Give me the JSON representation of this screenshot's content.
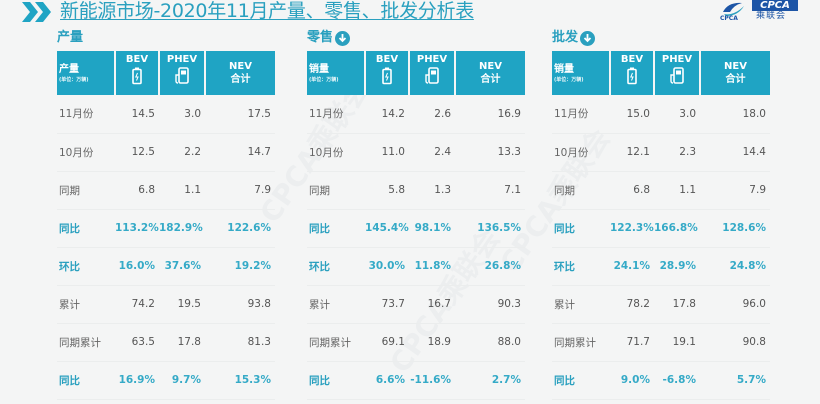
{
  "title": "新能源市场-2020年11月产量、零售、批发分析表",
  "logo": {
    "text": "CPCA",
    "cn": "乘联会",
    "sub": "CPCA"
  },
  "watermark": "CPCA乘联会",
  "colors": {
    "accent": "#2aa0bf",
    "header_bg": "#1fa4c4",
    "background": "#f4f5f5",
    "logo_blue": "#1d55a6"
  },
  "columns": {
    "bev": "BEV",
    "phev": "PHEV",
    "nev": "NEV",
    "nev_sub": "合计",
    "unit": "(单位：万辆)"
  },
  "sections": [
    {
      "title": "产量",
      "has_icon": false,
      "label_head": "产量",
      "rows": [
        {
          "label": "11月份",
          "bev": "14.5",
          "phev": "3.0",
          "nev": "17.5",
          "pct": false
        },
        {
          "label": "10月份",
          "bev": "12.5",
          "phev": "2.2",
          "nev": "14.7",
          "pct": false
        },
        {
          "label": "同期",
          "bev": "6.8",
          "phev": "1.1",
          "nev": "7.9",
          "pct": false
        },
        {
          "label": "同比",
          "bev": "113.2%",
          "phev": "182.9%",
          "nev": "122.6%",
          "pct": true
        },
        {
          "label": "环比",
          "bev": "16.0%",
          "phev": "37.6%",
          "nev": "19.2%",
          "pct": true
        },
        {
          "label": "累计",
          "bev": "74.2",
          "phev": "19.5",
          "nev": "93.8",
          "pct": false
        },
        {
          "label": "同期累计",
          "bev": "63.5",
          "phev": "17.8",
          "nev": "81.3",
          "pct": false
        },
        {
          "label": "同比",
          "bev": "16.9%",
          "phev": "9.7%",
          "nev": "15.3%",
          "pct": true
        }
      ]
    },
    {
      "title": "零售",
      "has_icon": true,
      "label_head": "销量",
      "rows": [
        {
          "label": "11月份",
          "bev": "14.2",
          "phev": "2.6",
          "nev": "16.9",
          "pct": false
        },
        {
          "label": "10月份",
          "bev": "11.0",
          "phev": "2.4",
          "nev": "13.3",
          "pct": false
        },
        {
          "label": "同期",
          "bev": "5.8",
          "phev": "1.3",
          "nev": "7.1",
          "pct": false
        },
        {
          "label": "同比",
          "bev": "145.4%",
          "phev": "98.1%",
          "nev": "136.5%",
          "pct": true
        },
        {
          "label": "环比",
          "bev": "30.0%",
          "phev": "11.8%",
          "nev": "26.8%",
          "pct": true
        },
        {
          "label": "累计",
          "bev": "73.7",
          "phev": "16.7",
          "nev": "90.3",
          "pct": false
        },
        {
          "label": "同期累计",
          "bev": "69.1",
          "phev": "18.9",
          "nev": "88.0",
          "pct": false
        },
        {
          "label": "同比",
          "bev": "6.6%",
          "phev": "-11.6%",
          "nev": "2.7%",
          "pct": true
        }
      ]
    },
    {
      "title": "批发",
      "has_icon": true,
      "label_head": "销量",
      "rows": [
        {
          "label": "11月份",
          "bev": "15.0",
          "phev": "3.0",
          "nev": "18.0",
          "pct": false
        },
        {
          "label": "10月份",
          "bev": "12.1",
          "phev": "2.3",
          "nev": "14.4",
          "pct": false
        },
        {
          "label": "同期",
          "bev": "6.8",
          "phev": "1.1",
          "nev": "7.9",
          "pct": false
        },
        {
          "label": "同比",
          "bev": "122.3%",
          "phev": "166.8%",
          "nev": "128.6%",
          "pct": true
        },
        {
          "label": "环比",
          "bev": "24.1%",
          "phev": "28.9%",
          "nev": "24.8%",
          "pct": true
        },
        {
          "label": "累计",
          "bev": "78.2",
          "phev": "17.8",
          "nev": "96.0",
          "pct": false
        },
        {
          "label": "同期累计",
          "bev": "71.7",
          "phev": "19.1",
          "nev": "90.8",
          "pct": false
        },
        {
          "label": "同比",
          "bev": "9.0%",
          "phev": "-6.8%",
          "nev": "5.7%",
          "pct": true
        }
      ]
    }
  ]
}
